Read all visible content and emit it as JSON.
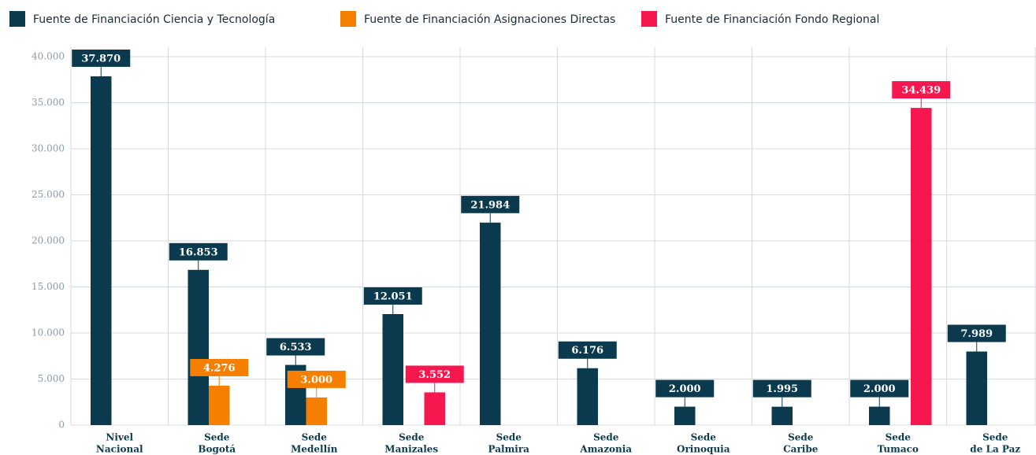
{
  "chart_data": {
    "type": "bar",
    "categories": [
      [
        "Nivel",
        "Nacional"
      ],
      [
        "Sede",
        "Bogotá"
      ],
      [
        "Sede",
        "Medellín"
      ],
      [
        "Sede",
        "Manizales"
      ],
      [
        "Sede",
        "Palmira"
      ],
      [
        "Sede",
        "Amazonia"
      ],
      [
        "Sede",
        "Orinoquia"
      ],
      [
        "Sede",
        "Caribe"
      ],
      [
        "Sede",
        "Tumaco"
      ],
      [
        "Sede",
        "de La Paz"
      ]
    ],
    "series": [
      {
        "name": "Fuente de Financiación Ciencia y Tecnología",
        "color": "#0b3a4e",
        "values": [
          37870,
          16853,
          6533,
          12051,
          21984,
          6176,
          2000,
          1995,
          2000,
          7989
        ],
        "value_labels": [
          "37.870",
          "16.853",
          "6.533",
          "12.051",
          "21.984",
          "6.176",
          "2.000",
          "1.995",
          "2.000",
          "7.989"
        ]
      },
      {
        "name": "Fuente de Financiación Asignaciones Directas",
        "color": "#f77f00",
        "values": [
          null,
          4276,
          3000,
          null,
          null,
          null,
          null,
          null,
          null,
          null
        ],
        "value_labels": [
          null,
          "4.276",
          "3.000",
          null,
          null,
          null,
          null,
          null,
          null,
          null
        ]
      },
      {
        "name": "Fuente de Financiación Fondo Regional",
        "color": "#f7174f",
        "values": [
          null,
          null,
          null,
          3552,
          null,
          null,
          null,
          null,
          34439,
          null
        ],
        "value_labels": [
          null,
          null,
          null,
          "3.552",
          null,
          null,
          null,
          null,
          "34.439",
          null
        ]
      }
    ],
    "ylim": [
      0,
      40000
    ],
    "yticks": [
      0,
      {
        "value": 5000,
        "label": "5.000"
      },
      {
        "value": 10000,
        "label": "10.000"
      },
      {
        "value": 15000,
        "label": "15.000"
      },
      {
        "value": 20000,
        "label": "20.000"
      },
      {
        "value": 25000,
        "label": "25.000"
      },
      {
        "value": 30000,
        "label": "30.000"
      },
      {
        "value": 35000,
        "label": "35.000"
      },
      {
        "value": 40000,
        "label": "40.000"
      }
    ],
    "grid": true,
    "legend": "top"
  }
}
